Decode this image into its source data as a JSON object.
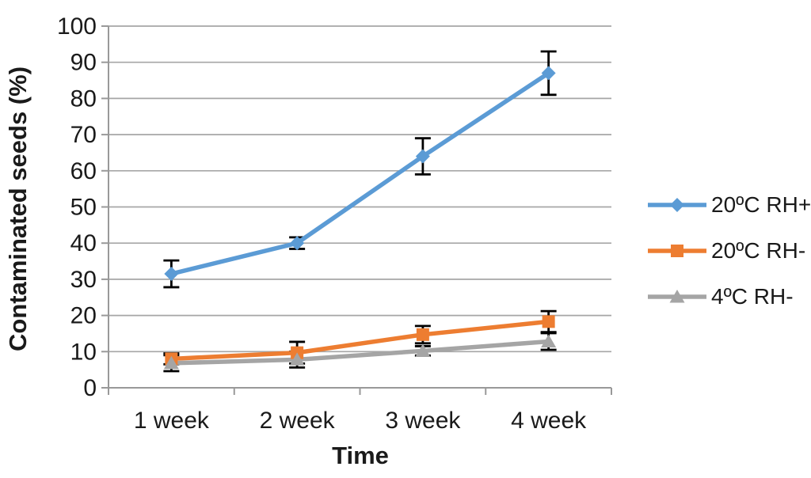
{
  "chart_data": {
    "type": "line",
    "xlabel": "Time",
    "ylabel": "Contaminated seeds (%)",
    "categories": [
      "1 week",
      "2 week",
      "3 week",
      "4 week"
    ],
    "ylim": [
      0,
      100
    ],
    "ytick_step": 10,
    "yticks": [
      0,
      10,
      20,
      30,
      40,
      50,
      60,
      70,
      80,
      90,
      100
    ],
    "grid": "horizontal",
    "legend_position": "right",
    "error_bars_shown": true,
    "series": [
      {
        "name": "20ºC RH+",
        "color": "#5B9BD5",
        "marker": "diamond",
        "values": [
          31.5,
          40,
          64,
          87
        ],
        "error_bars": [
          3.7,
          1.6,
          5,
          6
        ]
      },
      {
        "name": "20ºC RH-",
        "color": "#ED7D31",
        "marker": "square",
        "values": [
          8,
          9.7,
          14.7,
          18.3
        ],
        "error_bars": [
          1.5,
          3,
          2.4,
          2.9
        ]
      },
      {
        "name": "4ºC RH-",
        "color": "#A5A5A5",
        "marker": "triangle",
        "values": [
          6.8,
          7.8,
          10.2,
          12.8
        ],
        "error_bars": [
          2.2,
          2.2,
          1.3,
          2.3
        ]
      }
    ],
    "colors": {
      "gridline": "#A6A6A6",
      "axis": "#999999",
      "error_bar": "#000000",
      "text": "#1A1A1A",
      "background": "#FFFFFF"
    }
  }
}
